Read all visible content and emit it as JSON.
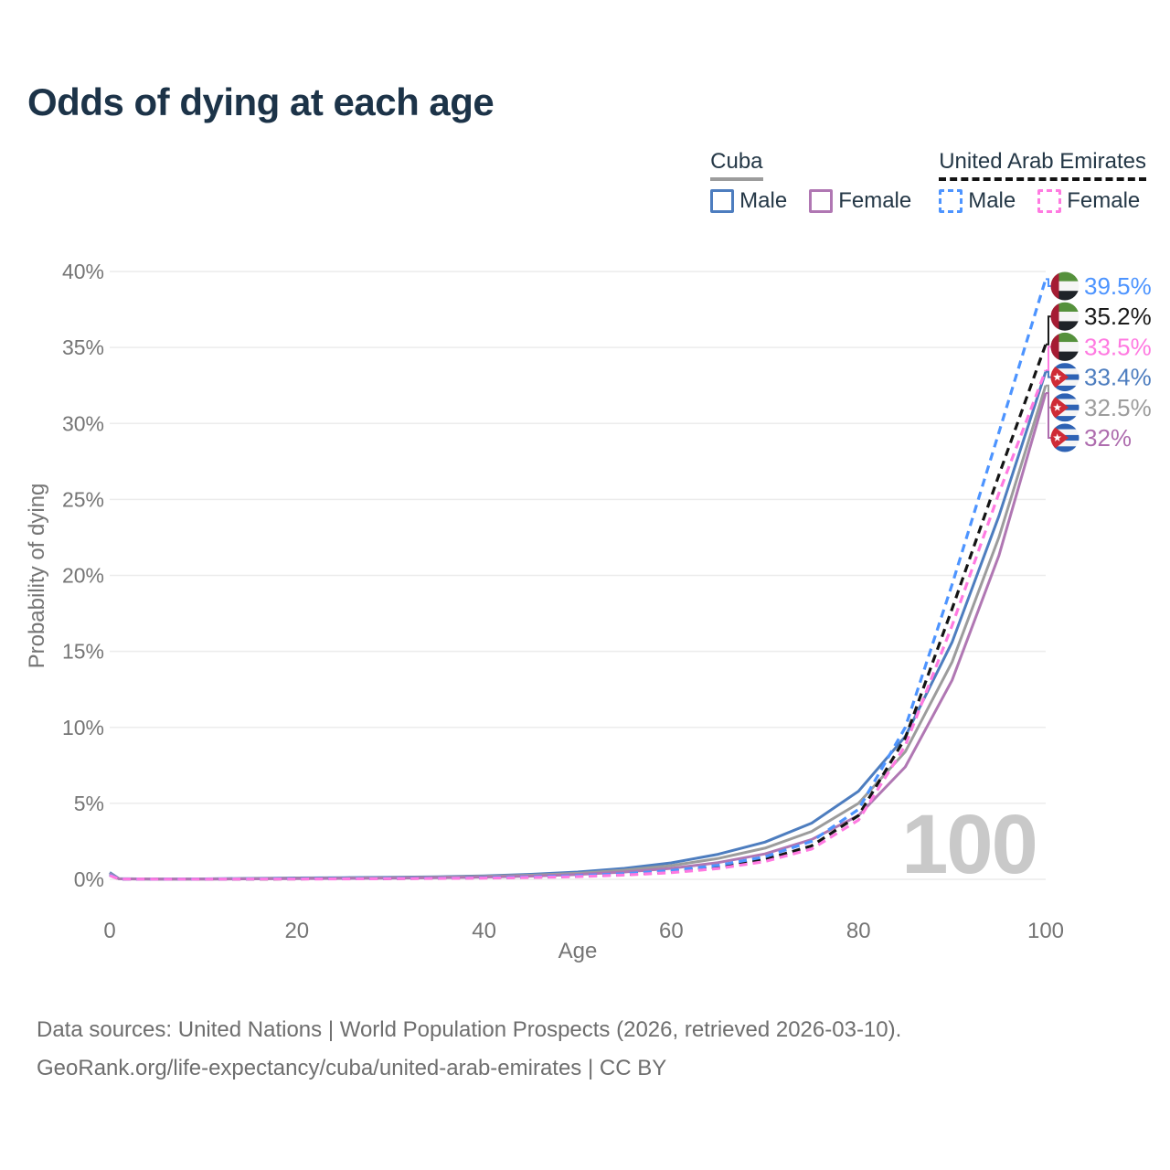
{
  "title": "Odds of dying at each age",
  "legend": {
    "groups": [
      {
        "name": "Cuba",
        "line_style": "solid",
        "underline_color": "#9c9c9c",
        "items": [
          {
            "label": "Male",
            "color": "#4d7dbf"
          },
          {
            "label": "Female",
            "color": "#b077b3"
          }
        ]
      },
      {
        "name": "United Arab Emirates",
        "line_style": "dashed",
        "underline_color": "#141414",
        "items": [
          {
            "label": "Male",
            "color": "#4d94ff"
          },
          {
            "label": "Female",
            "color": "#ff7ae1"
          }
        ]
      }
    ]
  },
  "chart_data": {
    "type": "line",
    "title": "Odds of dying at each age",
    "xlabel": "Age",
    "ylabel": "Probability of dying",
    "xlim": [
      0,
      100
    ],
    "ylim": [
      0,
      40
    ],
    "xticks": [
      0,
      20,
      40,
      60,
      80,
      100
    ],
    "yticks": [
      "0%",
      "5%",
      "10%",
      "15%",
      "20%",
      "25%",
      "30%",
      "35%",
      "40%"
    ],
    "ytick_values": [
      0,
      5,
      10,
      15,
      20,
      25,
      30,
      35,
      40
    ],
    "grid": "horizontal-only",
    "watermark": "100",
    "legend_position": "top-right",
    "ages": [
      0,
      1,
      5,
      10,
      15,
      20,
      25,
      30,
      35,
      40,
      45,
      50,
      55,
      60,
      65,
      70,
      75,
      80,
      85,
      90,
      95,
      100
    ],
    "series": [
      {
        "name": "Cuba Male",
        "country": "Cuba",
        "sex": "Male",
        "color": "#4d7dbf",
        "dashed": false,
        "values": [
          0.45,
          0.04,
          0.02,
          0.03,
          0.06,
          0.09,
          0.11,
          0.13,
          0.17,
          0.23,
          0.33,
          0.48,
          0.72,
          1.08,
          1.65,
          2.45,
          3.7,
          5.8,
          9.4,
          15.6,
          23.9,
          33.4
        ]
      },
      {
        "name": "Cuba Overall",
        "country": "Cuba",
        "sex": "Both",
        "color": "#9c9c9c",
        "dashed": false,
        "values": [
          0.4,
          0.03,
          0.02,
          0.02,
          0.04,
          0.07,
          0.08,
          0.1,
          0.14,
          0.19,
          0.27,
          0.4,
          0.6,
          0.9,
          1.37,
          2.05,
          3.15,
          5.0,
          8.4,
          14.3,
          22.5,
          32.5
        ]
      },
      {
        "name": "Cuba Female",
        "country": "Cuba",
        "sex": "Female",
        "color": "#b077b3",
        "dashed": false,
        "values": [
          0.35,
          0.03,
          0.01,
          0.02,
          0.03,
          0.04,
          0.06,
          0.08,
          0.1,
          0.15,
          0.21,
          0.32,
          0.48,
          0.72,
          1.1,
          1.67,
          2.62,
          4.2,
          7.4,
          13.1,
          21.3,
          32.0
        ]
      },
      {
        "name": "United Arab Emirates Overall",
        "country": "United Arab Emirates",
        "sex": "Both",
        "color": "#141414",
        "dashed": true,
        "values": [
          0.28,
          0.02,
          0.01,
          0.01,
          0.02,
          0.03,
          0.04,
          0.05,
          0.07,
          0.1,
          0.14,
          0.21,
          0.32,
          0.5,
          0.8,
          1.3,
          2.2,
          4.2,
          9.3,
          17.8,
          26.6,
          35.2
        ]
      },
      {
        "name": "United Arab Emirates Male",
        "country": "United Arab Emirates",
        "sex": "Male",
        "color": "#4d94ff",
        "dashed": true,
        "values": [
          0.3,
          0.02,
          0.01,
          0.02,
          0.03,
          0.04,
          0.05,
          0.06,
          0.08,
          0.11,
          0.16,
          0.24,
          0.37,
          0.58,
          0.92,
          1.48,
          2.5,
          4.6,
          10.0,
          19.4,
          29.4,
          39.5
        ]
      },
      {
        "name": "United Arab Emirates Female",
        "country": "United Arab Emirates",
        "sex": "Female",
        "color": "#ff7ae1",
        "dashed": true,
        "values": [
          0.26,
          0.02,
          0.01,
          0.01,
          0.02,
          0.02,
          0.03,
          0.04,
          0.06,
          0.08,
          0.12,
          0.18,
          0.28,
          0.44,
          0.71,
          1.17,
          2.0,
          3.9,
          8.8,
          16.7,
          25.4,
          33.5
        ]
      }
    ],
    "end_labels": [
      {
        "flag": "uae",
        "text": "39.5%",
        "value": 39.5,
        "color": "#4d94ff"
      },
      {
        "flag": "uae",
        "text": "35.2%",
        "value": 35.2,
        "color": "#1a1a1a"
      },
      {
        "flag": "uae",
        "text": "33.5%",
        "value": 33.5,
        "color": "#ff7ae1"
      },
      {
        "flag": "cuba",
        "text": "33.4%",
        "value": 33.4,
        "color": "#4d7dbf"
      },
      {
        "flag": "cuba",
        "text": "32.5%",
        "value": 32.5,
        "color": "#9c9c9c"
      },
      {
        "flag": "cuba",
        "text": "32%",
        "value": 32.0,
        "color": "#ae6cae"
      }
    ],
    "colors": {
      "grid": "#ececec",
      "axis_text": "#757575",
      "watermark": "#c9c9c9"
    }
  },
  "footer": {
    "line1": "Data sources: United Nations | World Population Prospects (2026, retrieved 2026-03-10).",
    "line2": "GeoRank.org/life-expectancy/cuba/united-arab-emirates | CC BY"
  }
}
